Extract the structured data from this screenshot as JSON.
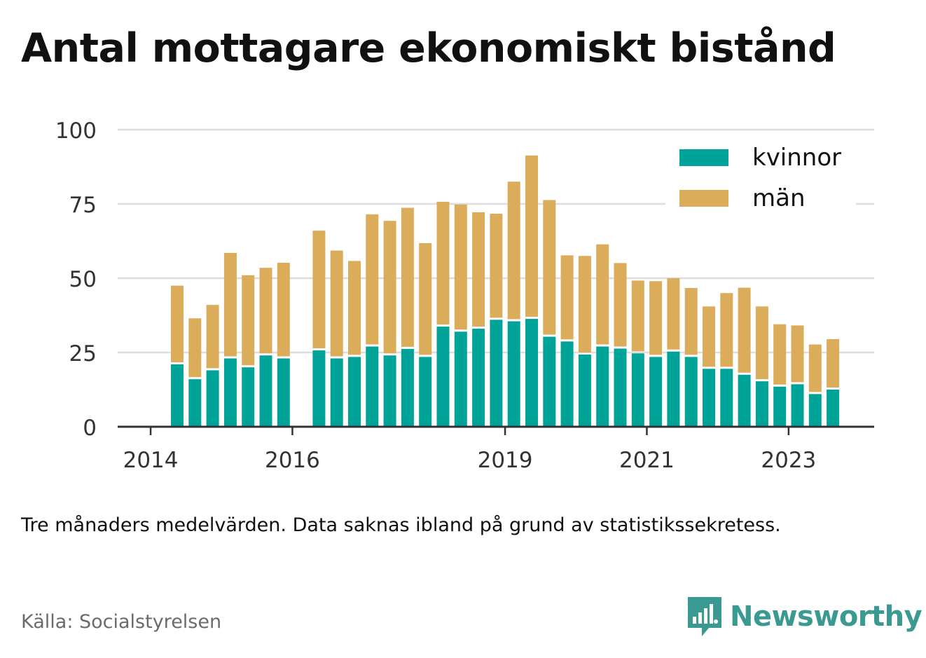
{
  "title": "Antal mottagare ekonomiskt bistånd",
  "note": "Tre månaders medelvärden. Data saknas ibland på grund av statistikssekretess.",
  "source": "Källa: Socialstyrelsen",
  "brand": "Newsworthy",
  "colors": {
    "kvinnor": "#00a398",
    "man": "#dbad5b",
    "grid": "#dddddd",
    "axis": "#333333",
    "brand": "#3a9a91"
  },
  "legend": [
    {
      "label": "kvinnor",
      "color": "#00a398"
    },
    {
      "label": "män",
      "color": "#dbad5b"
    }
  ],
  "chart_data": {
    "type": "bar",
    "stacked": true,
    "title": "Antal mottagare ekonomiskt bistånd",
    "xlabel": "",
    "ylabel": "",
    "ylim": [
      0,
      100
    ],
    "yticks": [
      "0",
      "25",
      "50",
      "75",
      "100"
    ],
    "xticks": [
      "2014",
      "2016",
      "2019",
      "2021",
      "2023"
    ],
    "grid": true,
    "legend_position": "top-right",
    "categories": [
      "2014-Q2",
      "2014-Q3",
      "2014-Q4",
      "2015-Q1",
      "2015-Q2",
      "2015-Q3",
      "2015-Q4",
      "2016-Q1",
      "2016-Q2",
      "2016-Q3",
      "2016-Q4",
      "2017-Q1",
      "2017-Q2",
      "2017-Q3",
      "2017-Q4",
      "2018-Q1",
      "2018-Q2",
      "2018-Q3",
      "2018-Q4",
      "2019-Q1",
      "2019-Q2",
      "2019-Q3",
      "2019-Q4",
      "2020-Q1",
      "2020-Q2",
      "2020-Q3",
      "2020-Q4",
      "2021-Q1",
      "2021-Q2",
      "2021-Q3",
      "2021-Q4",
      "2022-Q1",
      "2022-Q2",
      "2022-Q3",
      "2022-Q4",
      "2023-Q1",
      "2023-Q2",
      "2023-Q3"
    ],
    "series": [
      {
        "name": "kvinnor",
        "values": [
          21,
          16,
          19,
          23,
          20,
          24,
          23,
          null,
          25.7,
          23,
          23.5,
          27,
          24,
          26.2,
          23.5,
          33.7,
          32,
          33,
          36,
          35.5,
          36.3,
          30.3,
          28.7,
          24.3,
          27,
          26.3,
          24.7,
          23.5,
          25.3,
          23.5,
          19.5,
          19.5,
          17.5,
          15.3,
          13.5,
          14.3,
          11,
          12.5
        ]
      },
      {
        "name": "män",
        "values": [
          26.5,
          20.5,
          22,
          35.5,
          31,
          29.5,
          32.2,
          null,
          40.3,
          36.3,
          32.3,
          44.5,
          45.3,
          47.5,
          38.3,
          42,
          42.8,
          39.2,
          35.7,
          47,
          55,
          46,
          29,
          33.2,
          34.4,
          28.8,
          24.5,
          25.5,
          24.7,
          23.2,
          21,
          25.5,
          29.3,
          25.2,
          21,
          19.8,
          16.7,
          17
        ]
      }
    ]
  }
}
